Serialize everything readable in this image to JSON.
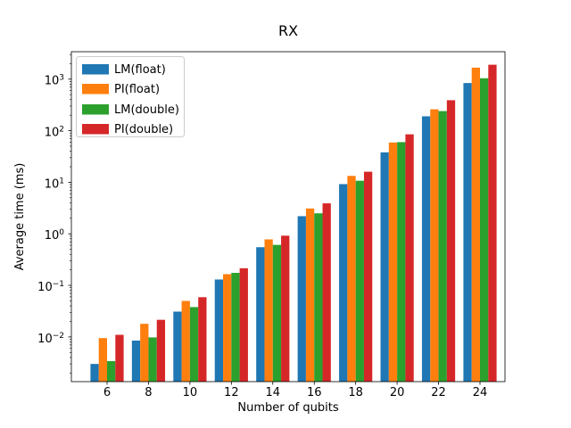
{
  "figure": {
    "title": "RX"
  },
  "chart_data": {
    "type": "bar",
    "title": "RX",
    "xlabel": "Number of qubits",
    "ylabel": "Average time (ms)",
    "yscale": "log",
    "ylim": [
      0.00136,
      3400
    ],
    "y_tick_exponents": [
      -2,
      -1,
      0,
      1,
      2,
      3
    ],
    "grid": false,
    "legend_position": "upper left",
    "categories": [
      6,
      8,
      10,
      12,
      14,
      16,
      18,
      20,
      22,
      24
    ],
    "series": [
      {
        "name": "LM(float)",
        "color": "#1f77b4",
        "values": [
          0.003,
          0.0085,
          0.031,
          0.13,
          0.55,
          2.2,
          9.2,
          38,
          190,
          840
        ]
      },
      {
        "name": "PI(float)",
        "color": "#ff7f0e",
        "values": [
          0.0095,
          0.018,
          0.05,
          0.165,
          0.78,
          3.1,
          13.3,
          59,
          260,
          1670
        ]
      },
      {
        "name": "LM(double)",
        "color": "#2ca02c",
        "values": [
          0.0034,
          0.0098,
          0.038,
          0.175,
          0.61,
          2.5,
          10.7,
          60,
          240,
          1040
        ]
      },
      {
        "name": "PI(double)",
        "color": "#d62728",
        "values": [
          0.011,
          0.0215,
          0.059,
          0.215,
          0.92,
          3.9,
          16,
          85,
          390,
          1900
        ]
      }
    ]
  }
}
